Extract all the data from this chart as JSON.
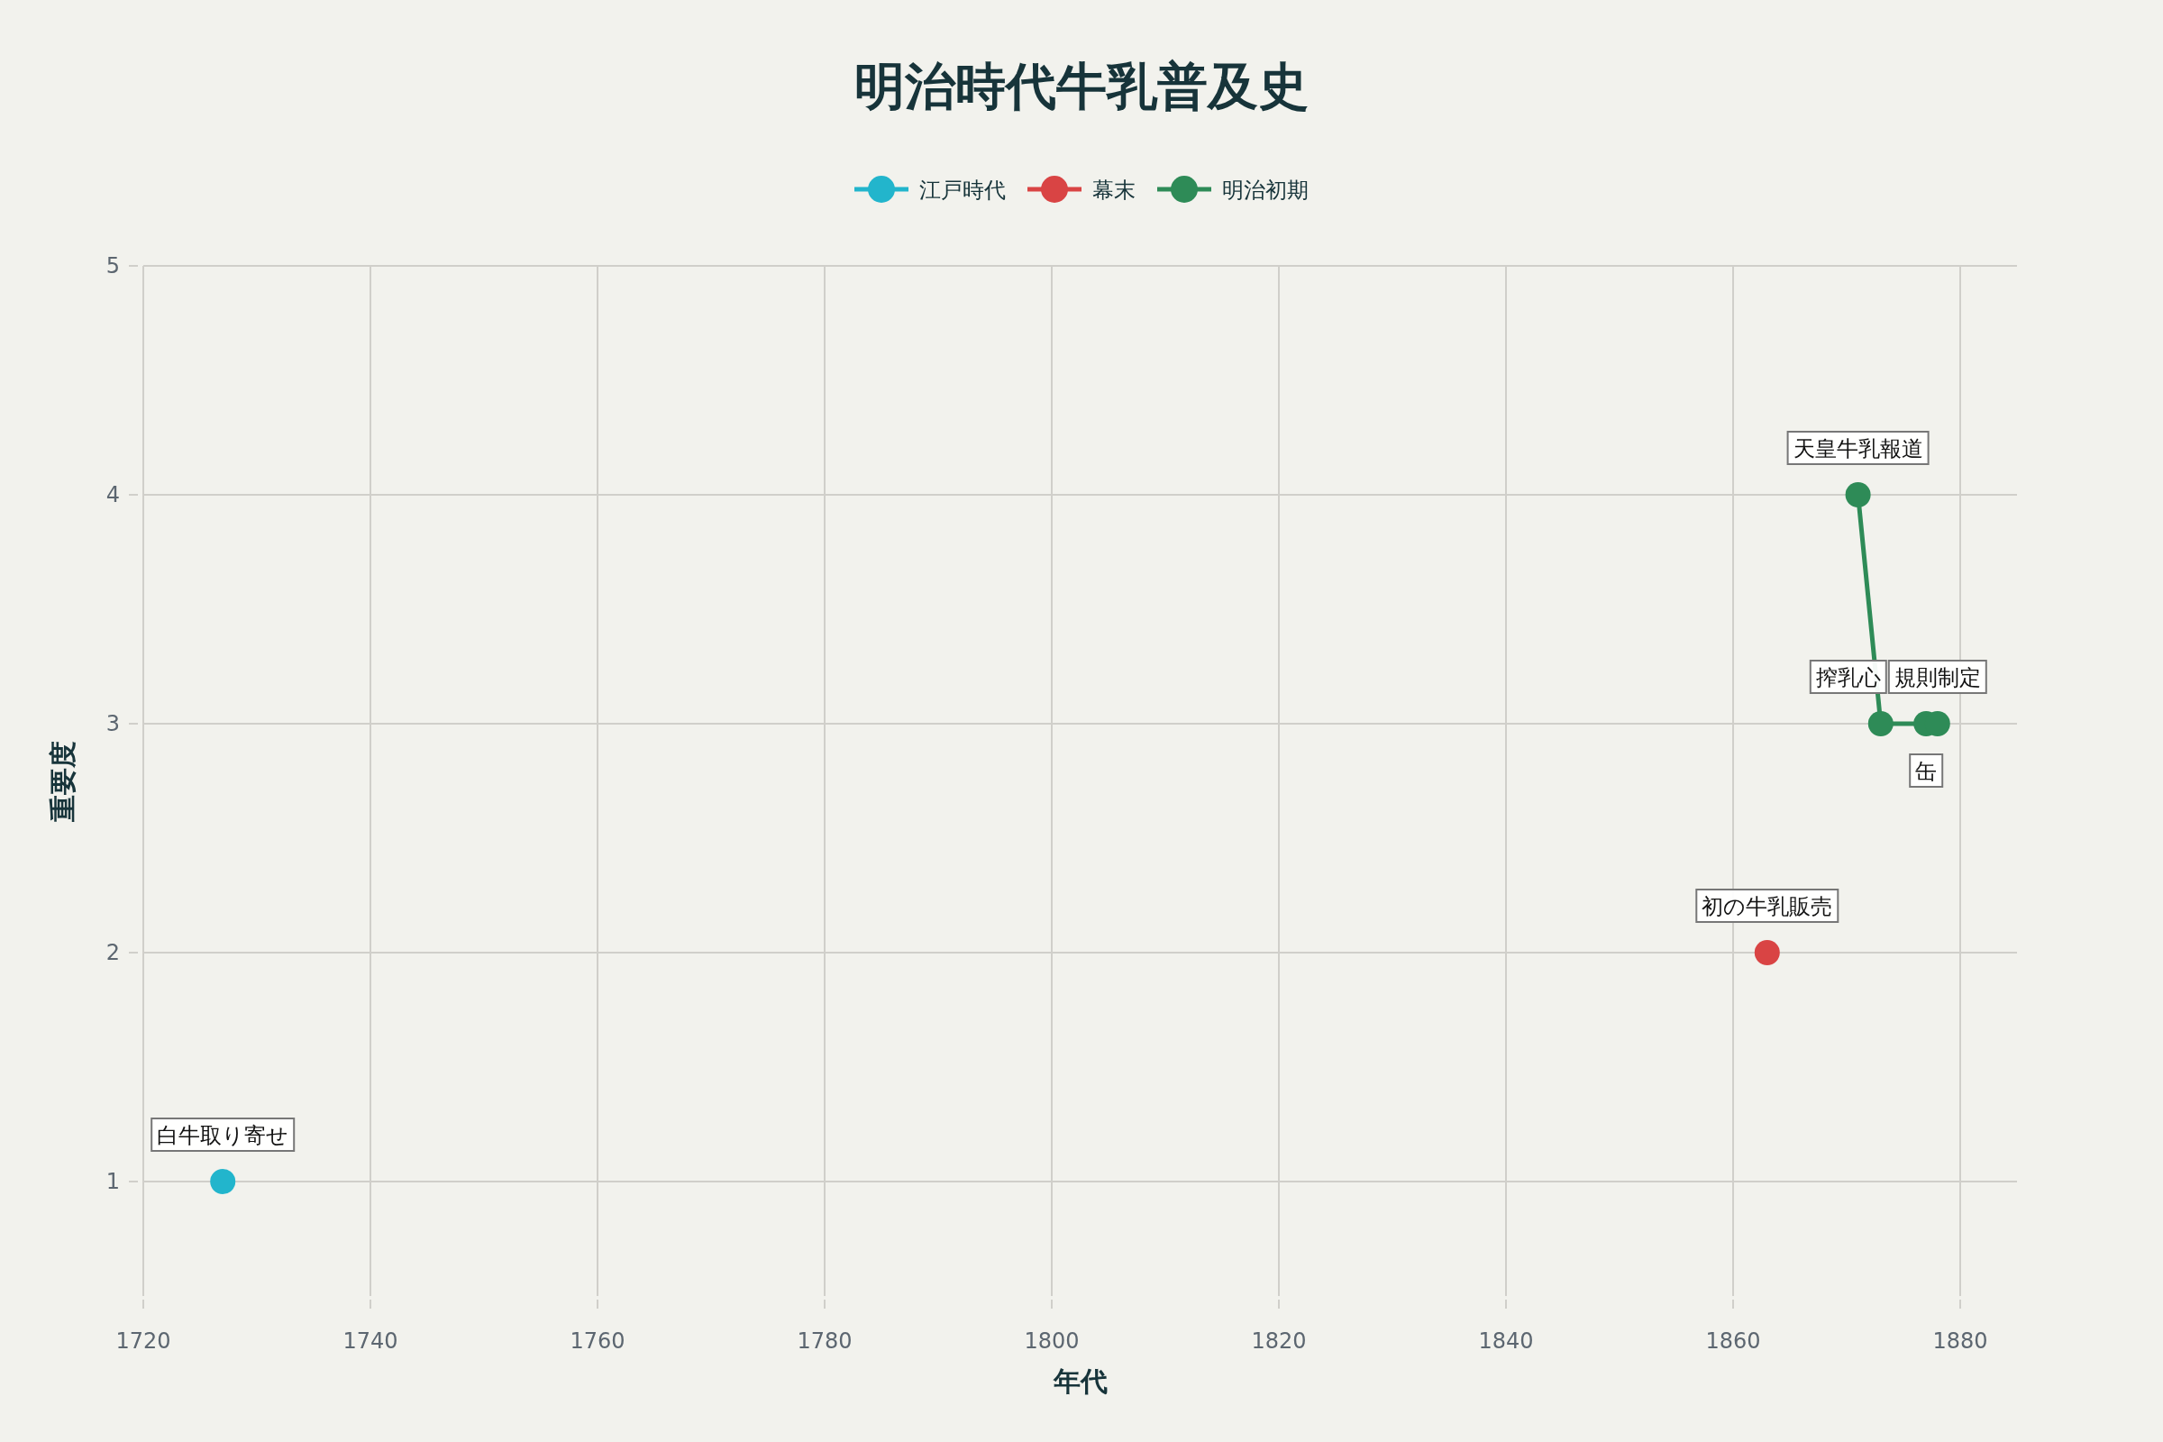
{
  "chart_data": {
    "type": "line",
    "title": "明治時代牛乳普及史",
    "xlabel": "年代",
    "ylabel": "重要度",
    "series": [
      {
        "name": "江戸時代",
        "color": "#22b5cc",
        "x": [
          1727
        ],
        "values": [
          1
        ]
      },
      {
        "name": "幕末",
        "color": "#d94444",
        "x": [
          1863
        ],
        "values": [
          2
        ]
      },
      {
        "name": "明治初期",
        "color": "#2e8b57",
        "x": [
          1871,
          1873,
          1877,
          1878
        ],
        "values": [
          4,
          3,
          3,
          3
        ]
      }
    ],
    "annotations": [
      {
        "text": "白牛取り寄せ",
        "x": 1727,
        "y": 1
      },
      {
        "text": "初の牛乳販売",
        "x": 1863,
        "y": 2
      },
      {
        "text": "天皇牛乳報道",
        "x": 1871,
        "y": 4
      },
      {
        "text": "搾乳心",
        "x": 1873,
        "y": 3
      },
      {
        "text": "缶",
        "x": 1877,
        "y": 3
      },
      {
        "text": "規則制定",
        "x": 1878,
        "y": 3
      }
    ],
    "xlim": [
      1720,
      1885
    ],
    "xticks": [
      1720,
      1740,
      1760,
      1780,
      1800,
      1820,
      1840,
      1860,
      1880
    ],
    "ylim": [
      0.5,
      5
    ],
    "yticks": [
      1,
      2,
      3,
      4,
      5
    ],
    "grid": true,
    "legend": "top",
    "marker": "circle",
    "line_style": "solid"
  }
}
